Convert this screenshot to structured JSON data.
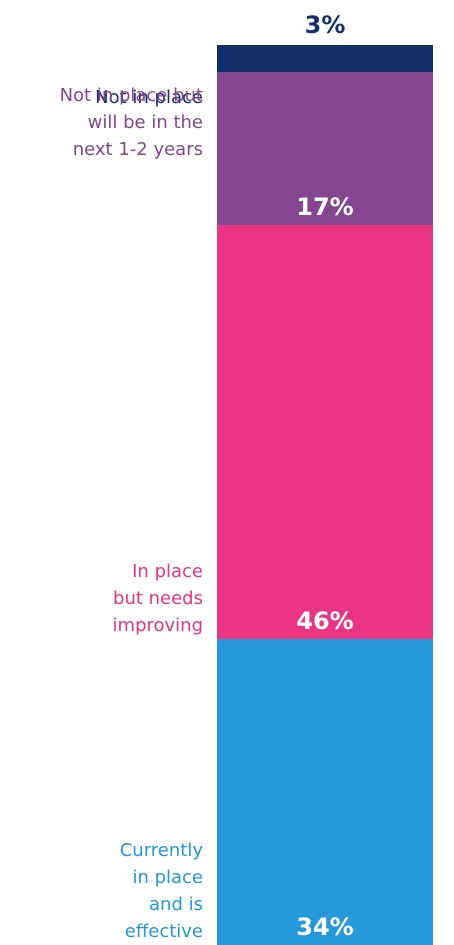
{
  "chart_data": {
    "type": "bar",
    "stacked": true,
    "orientation": "vertical",
    "categories": [
      "Not in place",
      "Not in place but will be in the next 1-2 years",
      "In place but needs improving",
      "Currently in place and is effective"
    ],
    "values": [
      3,
      17,
      46,
      34
    ],
    "value_labels": [
      "3%",
      "17%",
      "46%",
      "34%"
    ],
    "label_lines": [
      [
        "Not in place"
      ],
      [
        "Not in place but",
        "will be in the",
        "next 1-2 years"
      ],
      [
        "In place",
        "but needs",
        "improving"
      ],
      [
        "Currently",
        "in place",
        "and is",
        "effective"
      ]
    ],
    "colors": [
      "#13306b",
      "#84468f",
      "#e93582",
      "#2498d8"
    ],
    "value_label_colors": [
      "#13306b",
      "#ffffff",
      "#ffffff",
      "#ffffff"
    ],
    "unit": "%",
    "title": "",
    "xlabel": "",
    "ylabel": "",
    "grid": false,
    "legend": "none"
  }
}
